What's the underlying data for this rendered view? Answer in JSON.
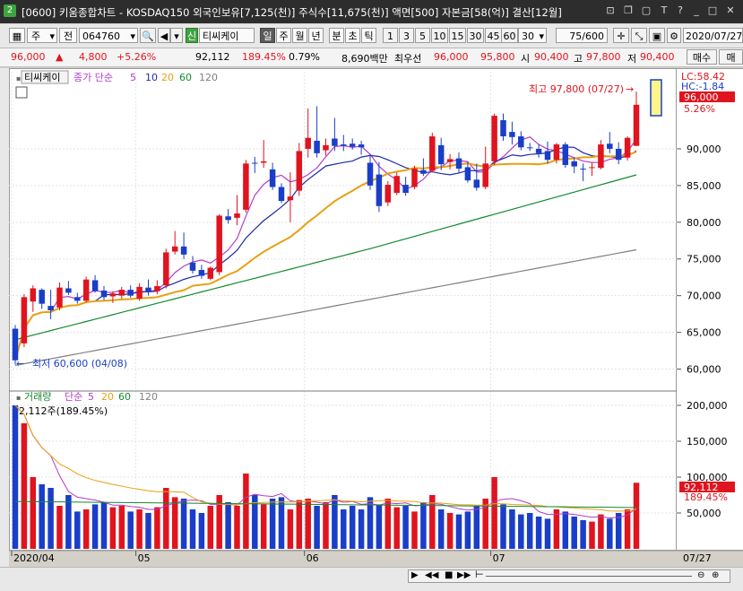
{
  "window": {
    "title": "[0600] 키움종합차트 - KOSDAQ150 외국인보유[7,125(천)] 주식수[11,675(천)] 액면[500] 자본금[58(억)] 결산[12월]",
    "app_num": "2"
  },
  "toolbar": {
    "period_type": "주",
    "market": "전",
    "code": "064760",
    "badge": "신",
    "stock_name": "티씨케이",
    "timeframes": [
      "일",
      "주",
      "월",
      "년",
      "분",
      "초",
      "틱"
    ],
    "minutes": [
      "1",
      "3",
      "5",
      "10",
      "15",
      "30",
      "45",
      "60"
    ],
    "minute_select": "30",
    "count": "75/600",
    "date": "2020/07/27"
  },
  "quote": {
    "price": "96,000",
    "change": "4,800",
    "change_pct": "+5.26%",
    "volume": "92,112",
    "vol_pct": "189.45%",
    "turnover": "0.79%",
    "amount": "8,690백만",
    "best_label": "최우선",
    "best_ask": "96,000",
    "best_bid": "95,800",
    "open_label": "시",
    "open": "90,400",
    "high_label": "고",
    "high": "97,800",
    "low_label": "저",
    "low": "90,400",
    "sell_btn": "매수",
    "more_btn": "매"
  },
  "legend_price": {
    "name": "티씨케이",
    "ma_label": "종가 단순",
    "periods": [
      "5",
      "10",
      "20",
      "60",
      "120"
    ],
    "colors": [
      "#b23cc8",
      "#1e2aa8",
      "#e8a010",
      "#138a2e",
      "#808080"
    ]
  },
  "legend_volume": {
    "name": "거래량",
    "ma_label": "단순",
    "periods": [
      "5",
      "20",
      "60",
      "120"
    ],
    "current": "92,112주(189.45%)"
  },
  "annotations": {
    "high": "최고 97,800 (07/27)",
    "low": "최저 60,600 (04/08)"
  },
  "axis_right": {
    "lc": "LC:58.42",
    "hc": "HC:-1.84",
    "price_tag": "96,000",
    "pct_tag": "5.26%",
    "price_ticks": [
      "90,000",
      "85,000",
      "80,000",
      "75,000",
      "70,000",
      "65,000",
      "60,000"
    ],
    "vol_ticks": [
      "200,000",
      "150,000",
      "100,000",
      "50,000"
    ],
    "vol_tag": "92,112",
    "vol_pct_tag": "189.45%",
    "date_tag": "07/27"
  },
  "x_labels": [
    "2020/04",
    "05",
    "06",
    "07"
  ],
  "chart_data": {
    "type": "candlestick",
    "ylim": [
      57500,
      100500
    ],
    "vol_ylim": [
      0,
      215000
    ],
    "candles": [
      {
        "o": 65500,
        "h": 66000,
        "l": 60600,
        "c": 61200
      },
      {
        "o": 63500,
        "h": 70200,
        "l": 63000,
        "c": 69800
      },
      {
        "o": 69200,
        "h": 71400,
        "l": 67800,
        "c": 71000
      },
      {
        "o": 70800,
        "h": 71000,
        "l": 68200,
        "c": 68900
      },
      {
        "o": 68600,
        "h": 70800,
        "l": 66800,
        "c": 68000
      },
      {
        "o": 68400,
        "h": 71800,
        "l": 68000,
        "c": 71100
      },
      {
        "o": 71000,
        "h": 72000,
        "l": 70100,
        "c": 70400
      },
      {
        "o": 69800,
        "h": 70400,
        "l": 68900,
        "c": 69300
      },
      {
        "o": 69300,
        "h": 72600,
        "l": 69100,
        "c": 72200
      },
      {
        "o": 72100,
        "h": 72800,
        "l": 70400,
        "c": 70600
      },
      {
        "o": 70700,
        "h": 71300,
        "l": 69400,
        "c": 69800
      },
      {
        "o": 69900,
        "h": 70600,
        "l": 69000,
        "c": 70300
      },
      {
        "o": 70000,
        "h": 71200,
        "l": 69600,
        "c": 70800
      },
      {
        "o": 70800,
        "h": 71400,
        "l": 69700,
        "c": 70000
      },
      {
        "o": 69600,
        "h": 71700,
        "l": 69300,
        "c": 71200
      },
      {
        "o": 71100,
        "h": 72200,
        "l": 70000,
        "c": 70600
      },
      {
        "o": 70600,
        "h": 72100,
        "l": 70200,
        "c": 71300
      },
      {
        "o": 71400,
        "h": 76400,
        "l": 71000,
        "c": 75900
      },
      {
        "o": 76000,
        "h": 78800,
        "l": 75600,
        "c": 76700
      },
      {
        "o": 76700,
        "h": 78600,
        "l": 75000,
        "c": 75600
      },
      {
        "o": 74500,
        "h": 75400,
        "l": 73000,
        "c": 73400
      },
      {
        "o": 73500,
        "h": 74200,
        "l": 72300,
        "c": 72700
      },
      {
        "o": 72300,
        "h": 74000,
        "l": 72100,
        "c": 73800
      },
      {
        "o": 73200,
        "h": 81100,
        "l": 72800,
        "c": 80900
      },
      {
        "o": 80800,
        "h": 81800,
        "l": 79800,
        "c": 80300
      },
      {
        "o": 80600,
        "h": 83700,
        "l": 79600,
        "c": 81200
      },
      {
        "o": 81700,
        "h": 88500,
        "l": 81300,
        "c": 88000
      },
      {
        "o": 88100,
        "h": 88900,
        "l": 86700,
        "c": 88000
      },
      {
        "o": 88100,
        "h": 91200,
        "l": 87400,
        "c": 88300
      },
      {
        "o": 87200,
        "h": 88100,
        "l": 84400,
        "c": 84800
      },
      {
        "o": 84800,
        "h": 85300,
        "l": 82600,
        "c": 82900
      },
      {
        "o": 83000,
        "h": 86800,
        "l": 80000,
        "c": 83500
      },
      {
        "o": 84300,
        "h": 90800,
        "l": 83600,
        "c": 89700
      },
      {
        "o": 90000,
        "h": 95500,
        "l": 88800,
        "c": 91500
      },
      {
        "o": 91100,
        "h": 95800,
        "l": 88800,
        "c": 89400
      },
      {
        "o": 89800,
        "h": 91400,
        "l": 89100,
        "c": 90500
      },
      {
        "o": 91400,
        "h": 94200,
        "l": 89700,
        "c": 90400
      },
      {
        "o": 90600,
        "h": 91900,
        "l": 89700,
        "c": 90400
      },
      {
        "o": 90700,
        "h": 91400,
        "l": 89900,
        "c": 90300
      },
      {
        "o": 90600,
        "h": 91100,
        "l": 89200,
        "c": 90200
      },
      {
        "o": 88100,
        "h": 89300,
        "l": 84400,
        "c": 85000
      },
      {
        "o": 86500,
        "h": 88200,
        "l": 81400,
        "c": 82200
      },
      {
        "o": 82700,
        "h": 85600,
        "l": 82200,
        "c": 85100
      },
      {
        "o": 84000,
        "h": 86800,
        "l": 83700,
        "c": 86300
      },
      {
        "o": 85100,
        "h": 86200,
        "l": 83600,
        "c": 84000
      },
      {
        "o": 84800,
        "h": 87700,
        "l": 84500,
        "c": 87300
      },
      {
        "o": 87100,
        "h": 88700,
        "l": 86300,
        "c": 86600
      },
      {
        "o": 87000,
        "h": 92200,
        "l": 86800,
        "c": 91700
      },
      {
        "o": 90500,
        "h": 91500,
        "l": 87100,
        "c": 87900
      },
      {
        "o": 88200,
        "h": 89300,
        "l": 87200,
        "c": 88600
      },
      {
        "o": 88700,
        "h": 89500,
        "l": 86700,
        "c": 87300
      },
      {
        "o": 87500,
        "h": 88200,
        "l": 85400,
        "c": 85700
      },
      {
        "o": 85800,
        "h": 88000,
        "l": 84300,
        "c": 84700
      },
      {
        "o": 84800,
        "h": 90300,
        "l": 84500,
        "c": 88000
      },
      {
        "o": 88300,
        "h": 94800,
        "l": 87800,
        "c": 94500
      },
      {
        "o": 93900,
        "h": 94800,
        "l": 91100,
        "c": 91700
      },
      {
        "o": 92300,
        "h": 93700,
        "l": 90600,
        "c": 91600
      },
      {
        "o": 91700,
        "h": 92400,
        "l": 89800,
        "c": 90200
      },
      {
        "o": 90200,
        "h": 90800,
        "l": 89700,
        "c": 90100
      },
      {
        "o": 90000,
        "h": 90600,
        "l": 88800,
        "c": 89400
      },
      {
        "o": 89700,
        "h": 91000,
        "l": 88000,
        "c": 88500
      },
      {
        "o": 88500,
        "h": 90800,
        "l": 88000,
        "c": 90600
      },
      {
        "o": 90600,
        "h": 90900,
        "l": 87400,
        "c": 87800
      },
      {
        "o": 88300,
        "h": 88900,
        "l": 86700,
        "c": 87600
      },
      {
        "o": 87300,
        "h": 88000,
        "l": 85600,
        "c": 87200
      },
      {
        "o": 87500,
        "h": 88200,
        "l": 86300,
        "c": 87500
      },
      {
        "o": 87400,
        "h": 91200,
        "l": 87200,
        "c": 90600
      },
      {
        "o": 90700,
        "h": 92300,
        "l": 89400,
        "c": 90000
      },
      {
        "o": 90000,
        "h": 90900,
        "l": 87900,
        "c": 88500
      },
      {
        "o": 88800,
        "h": 91700,
        "l": 88400,
        "c": 91500
      },
      {
        "o": 90400,
        "h": 97800,
        "l": 90400,
        "c": 96000
      }
    ],
    "volume": [
      200000,
      175000,
      100000,
      90000,
      85000,
      60000,
      75000,
      52000,
      55000,
      62000,
      65000,
      58000,
      60000,
      52000,
      55000,
      50000,
      58000,
      85000,
      72000,
      70000,
      55000,
      50000,
      60000,
      75000,
      65000,
      60000,
      105000,
      75000,
      62000,
      70000,
      72000,
      55000,
      68000,
      70000,
      60000,
      65000,
      75000,
      55000,
      60000,
      55000,
      72000,
      62000,
      70000,
      58000,
      60000,
      52000,
      65000,
      75000,
      55000,
      50000,
      48000,
      52000,
      60000,
      70000,
      100000,
      62000,
      55000,
      48000,
      50000,
      45000,
      42000,
      55000,
      52000,
      45000,
      40000,
      38000,
      48000,
      42000,
      50000,
      55000,
      92112
    ],
    "ma_volume_5": [
      200000,
      187500,
      158000,
      141000,
      130000,
      102000,
      80000,
      72000,
      70000,
      68000,
      65000,
      61000,
      61000,
      59000,
      58000,
      55000,
      55000,
      60000,
      64000,
      67000,
      68000,
      67000,
      62000,
      62000,
      62000,
      61000,
      72000,
      76000,
      74000,
      73000,
      77000,
      67000,
      65000,
      67000,
      65000,
      63000,
      68000,
      65000,
      66000,
      62000,
      63000,
      61000,
      64000,
      63000,
      64000,
      60000,
      61000,
      63000,
      62000,
      59000,
      56000,
      54000,
      55000,
      58000,
      66000,
      69000,
      70000,
      67000,
      63000,
      52000,
      48000,
      48000,
      49000,
      48000,
      46000,
      44000,
      45000,
      43000,
      44000,
      47000,
      57000
    ]
  }
}
